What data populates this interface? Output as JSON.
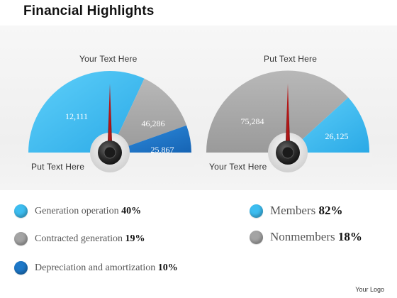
{
  "page": {
    "title": "Financial Highlights",
    "logo_text": "Your Logo"
  },
  "colors": {
    "light_blue": "#3dbdf0",
    "gray": "#a4a4a4",
    "dark_blue": "#1d78c8",
    "needle": "#8e0f0f"
  },
  "gauge_left": {
    "top_label": "Your Text Here",
    "bottom_label": "Put Text Here",
    "values": [
      "12,111",
      "46,286",
      "25,867"
    ]
  },
  "gauge_right": {
    "top_label": "Put Text Here",
    "bottom_label": "Your Text Here",
    "values": [
      "75,284",
      "26,125"
    ]
  },
  "legend_left": [
    {
      "label": "Generation operation",
      "value": "40%",
      "color": "#3dbdf0"
    },
    {
      "label": "Contracted generation",
      "value": "19%",
      "color": "#a4a4a4"
    },
    {
      "label": "Depreciation and amortization",
      "value": "10%",
      "color": "#1d78c8"
    }
  ],
  "legend_right": [
    {
      "label": "Members",
      "value": "82%",
      "color": "#3dbdf0"
    },
    {
      "label": "Nonmembers",
      "value": "18%",
      "color": "#a4a4a4"
    }
  ]
}
